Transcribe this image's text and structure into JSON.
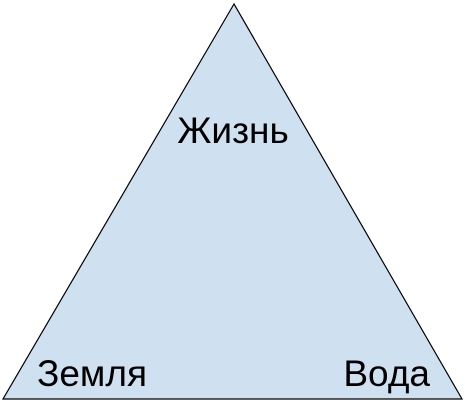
{
  "diagram": {
    "labels": {
      "top": "Жизнь",
      "bottom_left": "Земля",
      "bottom_right": "Вода"
    },
    "colors": {
      "fill": "#cfe0f1",
      "stroke": "#000000"
    }
  }
}
